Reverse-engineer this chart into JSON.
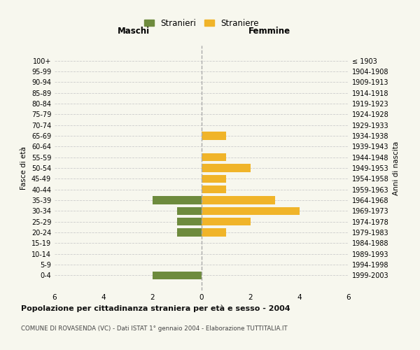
{
  "age_groups": [
    "100+",
    "95-99",
    "90-94",
    "85-89",
    "80-84",
    "75-79",
    "70-74",
    "65-69",
    "60-64",
    "55-59",
    "50-54",
    "45-49",
    "40-44",
    "35-39",
    "30-34",
    "25-29",
    "20-24",
    "15-19",
    "10-14",
    "5-9",
    "0-4"
  ],
  "birth_years": [
    "≤ 1903",
    "1904-1908",
    "1909-1913",
    "1914-1918",
    "1919-1923",
    "1924-1928",
    "1929-1933",
    "1934-1938",
    "1939-1943",
    "1944-1948",
    "1949-1953",
    "1954-1958",
    "1959-1963",
    "1964-1968",
    "1969-1973",
    "1974-1978",
    "1979-1983",
    "1984-1988",
    "1989-1993",
    "1994-1998",
    "1999-2003"
  ],
  "males": [
    0,
    0,
    0,
    0,
    0,
    0,
    0,
    0,
    0,
    0,
    0,
    0,
    0,
    2,
    1,
    1,
    1,
    0,
    0,
    0,
    2
  ],
  "females": [
    0,
    0,
    0,
    0,
    0,
    0,
    0,
    1,
    0,
    1,
    2,
    1,
    1,
    3,
    4,
    2,
    1,
    0,
    0,
    0,
    0
  ],
  "male_color": "#6e8b3d",
  "female_color": "#f0b429",
  "xlim": 6,
  "title": "Popolazione per cittadinanza straniera per età e sesso - 2004",
  "subtitle": "COMUNE DI ROVASENDA (VC) - Dati ISTAT 1° gennaio 2004 - Elaborazione TUTTITALIA.IT",
  "ylabel_left": "Fasce di età",
  "ylabel_right": "Anni di nascita",
  "label_maschi": "Maschi",
  "label_femmine": "Femmine",
  "legend_maschi": "Stranieri",
  "legend_femmine": "Straniere",
  "bg_color": "#f7f7ee",
  "bar_height": 0.75
}
